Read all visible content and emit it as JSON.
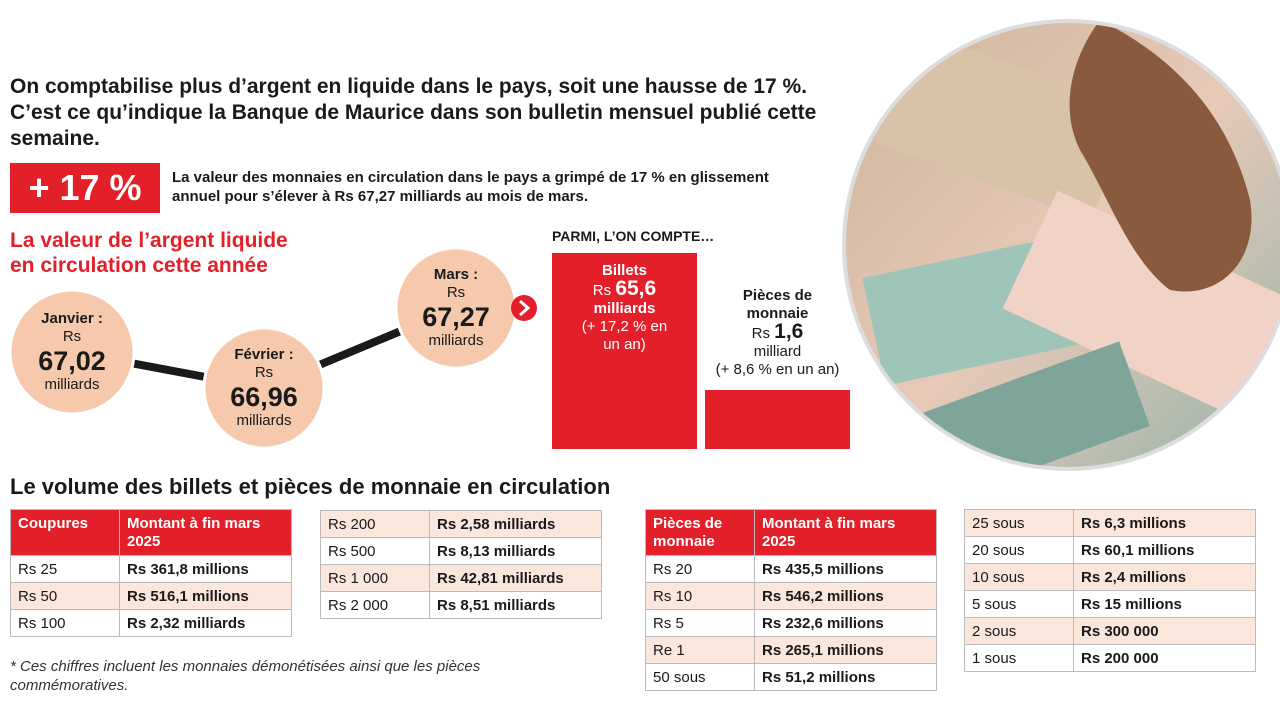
{
  "intro": "On comptabilise plus d’argent en liquide dans le pays, soit une hausse de 17 %. C’est ce qu’indique la Banque de Maurice dans son bulletin mensuel publié cette semaine.",
  "highlight": {
    "badge": "+ 17 %",
    "text": "La valeur des monnaies en circulation dans le pays a grimpé de 17 % en glissement annuel pour s’élever à Rs 67,27 milliards au mois de mars."
  },
  "timeline": {
    "title": [
      "La valeur de l’argent liquide",
      "en circulation cette année"
    ],
    "points": [
      {
        "month": "Janvier :",
        "currency": "Rs",
        "value": "67,02",
        "unit": "milliards"
      },
      {
        "month": "Février :",
        "currency": "Rs",
        "value": "66,96",
        "unit": "milliards"
      },
      {
        "month": "Mars :",
        "currency": "Rs",
        "value": "67,27",
        "unit": "milliards"
      }
    ]
  },
  "breakdown": {
    "title": "PARMI, L’ON COMPTE…",
    "items": [
      {
        "label": "Billets",
        "currency": "Rs",
        "value": "65,6",
        "unit": "milliards",
        "change": "(+ 17,2 % en un an)"
      },
      {
        "label": "Pièces de monnaie",
        "currency": "Rs",
        "value": "1,6",
        "unit": "milliard",
        "change": "(+ 8,6 % en un an)"
      }
    ]
  },
  "volume": {
    "title": "Le volume des billets et pièces de monnaie en circulation",
    "tables": [
      {
        "header": [
          "Coupures",
          "Montant à fin mars 2025"
        ],
        "rows": [
          [
            "Rs 25",
            "Rs 361,8 millions"
          ],
          [
            "Rs 50",
            "Rs 516,1 millions"
          ],
          [
            "Rs 100",
            "Rs 2,32 milliards"
          ]
        ]
      },
      {
        "rows": [
          [
            "Rs 200",
            "Rs 2,58 milliards"
          ],
          [
            "Rs 500",
            "Rs 8,13 milliards"
          ],
          [
            "Rs 1 000",
            "Rs 42,81 milliards"
          ],
          [
            "Rs 2 000",
            "Rs 8,51 milliards"
          ]
        ]
      },
      {
        "header": [
          "Pièces de monnaie",
          "Montant à fin mars 2025"
        ],
        "rows": [
          [
            "Rs 20",
            "Rs 435,5 millions"
          ],
          [
            "Rs 10",
            "Rs 546,2 millions"
          ],
          [
            "Rs 5",
            "Rs 232,6 millions"
          ],
          [
            "Re 1",
            "Rs 265,1 millions"
          ],
          [
            "50 sous",
            "Rs 51,2 millions"
          ]
        ]
      },
      {
        "rows": [
          [
            "25 sous",
            "Rs 6,3 millions"
          ],
          [
            "20 sous",
            "Rs 60,1 millions"
          ],
          [
            "10 sous",
            "Rs 2,4 millions"
          ],
          [
            "5 sous",
            "Rs 15 millions"
          ],
          [
            "2 sous",
            "Rs 300 000"
          ],
          [
            "1 sous",
            "Rs 200 000"
          ]
        ]
      }
    ]
  },
  "footnote": "* Ces chiffres incluent les monnaies démonétisées ainsi que les pièces commémoratives."
}
